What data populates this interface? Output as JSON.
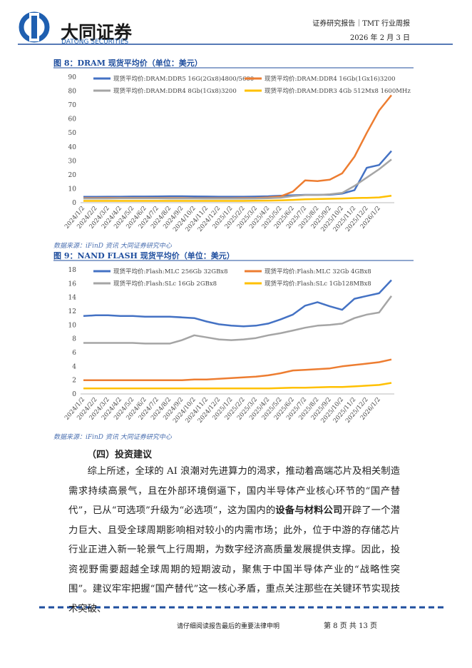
{
  "header": {
    "company": "大同证券",
    "company_en": "DATONG SECURITIES",
    "report_type": "证券研究报告｜TMT 行业周报",
    "date": "2026 年 2 月 3 日"
  },
  "figures": [
    {
      "title": "图 8：DRAM 现货平均价（单位：美元）",
      "source": "数据来源：iFinD 资讯 大同证券研究中心"
    },
    {
      "title": "图 9：NAND FLASH 现货平均价（单位：美元）",
      "source": "数据来源：iFinD 资讯 大同证券研究中心"
    }
  ],
  "chart_data": [
    {
      "type": "line",
      "ylim": [
        0,
        90
      ],
      "yticks": [
        0,
        10,
        20,
        30,
        40,
        50,
        60,
        70,
        80,
        90
      ],
      "categories": [
        "2024/1/2",
        "2024/2/2",
        "2024/3/2",
        "2024/4/2",
        "2024/5/2",
        "2024/6/2",
        "2024/7/2",
        "2024/8/2",
        "2024/9/2",
        "2024/10/2",
        "2024/11/2",
        "2024/12/2",
        "2025/1/2",
        "2025/2/2",
        "2025/3/2",
        "2025/4/2",
        "2025/5/2",
        "2025/6/2",
        "2025/7/2",
        "2025/8/2",
        "2025/9/2",
        "2025/10/2",
        "2025/11/2",
        "2025/12/2",
        "2026/1/2",
        null
      ],
      "series": [
        {
          "name": "现货平均价:DRAM:DDR5 16G(2Gx8)4800/5600",
          "color": "#4472c4",
          "values": [
            4.2,
            4.2,
            4.3,
            4.3,
            4.4,
            4.4,
            4.5,
            4.6,
            4.6,
            4.5,
            4.4,
            4.3,
            4.3,
            4.3,
            4.4,
            4.6,
            5,
            5.3,
            5.6,
            5.6,
            5.7,
            6.5,
            9,
            25,
            27,
            37
          ]
        },
        {
          "name": "现货平均价:DRAM:DDR4 16Gb(1Gx16)3200",
          "color": "#ed7d31",
          "values": [
            3.3,
            3.3,
            3.4,
            3.4,
            3.4,
            3.4,
            3.4,
            3.3,
            3.3,
            3.2,
            3.2,
            3.2,
            3.2,
            3.3,
            3.4,
            3.8,
            4.5,
            8,
            16,
            15.5,
            16.5,
            21,
            33,
            50,
            66,
            77
          ]
        },
        {
          "name": "现货平均价:DRAM:DDR4 8Gb(1Gx8)3200",
          "color": "#a5a5a5",
          "values": [
            3,
            3,
            3,
            3.1,
            3.1,
            3.1,
            3.1,
            3,
            3,
            3,
            2.9,
            2.9,
            2.9,
            2.9,
            3,
            3.2,
            3.6,
            4.8,
            5.5,
            5.5,
            6,
            7,
            12,
            18,
            24,
            31
          ]
        },
        {
          "name": "现货平均价:DRAM:DDR3 4Gb 512Mx8 1600MHz",
          "color": "#ffc000",
          "values": [
            1.3,
            1.3,
            1.3,
            1.3,
            1.3,
            1.3,
            1.3,
            1.3,
            1.3,
            1.3,
            1.3,
            1.3,
            1.3,
            1.3,
            1.4,
            1.5,
            1.7,
            2,
            2.4,
            2.6,
            2.8,
            3,
            3.3,
            3.5,
            3.8,
            5
          ]
        }
      ]
    },
    {
      "type": "line",
      "ylim": [
        0,
        18
      ],
      "yticks": [
        0,
        2,
        4,
        6,
        8,
        10,
        12,
        14,
        16,
        18
      ],
      "categories": [
        "2024/1/2",
        "2024/2/2",
        "2024/3/2",
        "2024/4/2",
        "2024/5/2",
        "2024/6/2",
        "2024/7/2",
        "2024/8/2",
        "2024/9/2",
        "2024/10/2",
        "2024/11/2",
        "2024/12/2",
        "2025/1/2",
        "2025/2/2",
        "2025/3/2",
        "2025/4/2",
        "2025/5/2",
        "2025/6/2",
        "2025/7/2",
        "2025/8/2",
        "2025/9/2",
        "2025/10/2",
        "2025/11/2",
        "2025/12/2",
        "2026/1/2",
        null
      ],
      "series": [
        {
          "name": "现货平均价:Flash:MLC 256Gb 32GBx8",
          "color": "#4472c4",
          "values": [
            11.3,
            11.4,
            11.4,
            11.3,
            11.3,
            11.2,
            11.2,
            11.2,
            11.1,
            11,
            10.5,
            10.1,
            9.9,
            9.8,
            9.9,
            10.2,
            10.8,
            11.5,
            12.8,
            13.3,
            12.7,
            12.2,
            13.8,
            14.2,
            14.6,
            16.5
          ]
        },
        {
          "name": "现货平均价:Flash:MLC 32Gb 4GBx8",
          "color": "#ed7d31",
          "values": [
            2,
            2,
            2,
            2,
            2,
            2,
            2,
            2,
            2,
            2.1,
            2.1,
            2.2,
            2.3,
            2.4,
            2.5,
            2.7,
            3,
            3.4,
            3.5,
            3.6,
            3.7,
            4,
            4.2,
            4.4,
            4.6,
            5
          ]
        },
        {
          "name": "现货平均价:Flash:SLc 16Gb 2GBx8",
          "color": "#a5a5a5",
          "values": [
            7.4,
            7.4,
            7.4,
            7.4,
            7.4,
            7.3,
            7.3,
            7.3,
            7.8,
            8.5,
            8.2,
            7.9,
            7.8,
            7.9,
            8.1,
            8.5,
            8.8,
            9.2,
            9.6,
            9.9,
            10,
            10.2,
            11,
            11.5,
            11.8,
            14.2
          ]
        },
        {
          "name": "现货平均价:Flash:SLc 1Gb128MBx8",
          "color": "#ffc000",
          "values": [
            0.8,
            0.8,
            0.8,
            0.8,
            0.8,
            0.8,
            0.8,
            0.8,
            0.8,
            0.8,
            0.8,
            0.8,
            0.8,
            0.8,
            0.8,
            0.8,
            0.85,
            0.9,
            0.9,
            0.95,
            1,
            1,
            1.1,
            1.2,
            1.3,
            1.6
          ]
        }
      ]
    }
  ],
  "section": {
    "heading": "（四）投资建议",
    "paragraph_before": "综上所述，全球的 AI 浪潮对先进算力的渴求，推动着高端芯片及相关制造需求持续高景气，且在外部环境倒逼下，国内半导体产业核心环节的“国产替代”，已从“可选项”升级为“必选项”，这为国内的",
    "paragraph_bold": "设备与材料公司",
    "paragraph_after": "开辟了一个潜力巨大、且受全球周期影响相对较小的内需市场；此外，位于中游的存储芯片行业正进入新一轮景气上行周期，为数字经济高质量发展提供支撑。因此，投资视野需要超越全球周期的短期波动，聚焦于中国半导体产业的“战略性突围”。建议牢牢把握“国产替代”这一核心矛盾，重点关注那些在关键环节实现技术突破、"
  },
  "footer": {
    "disclaimer": "请仔细阅读报告最后的重要法律申明",
    "page": "第 8 页 共 13 页"
  }
}
